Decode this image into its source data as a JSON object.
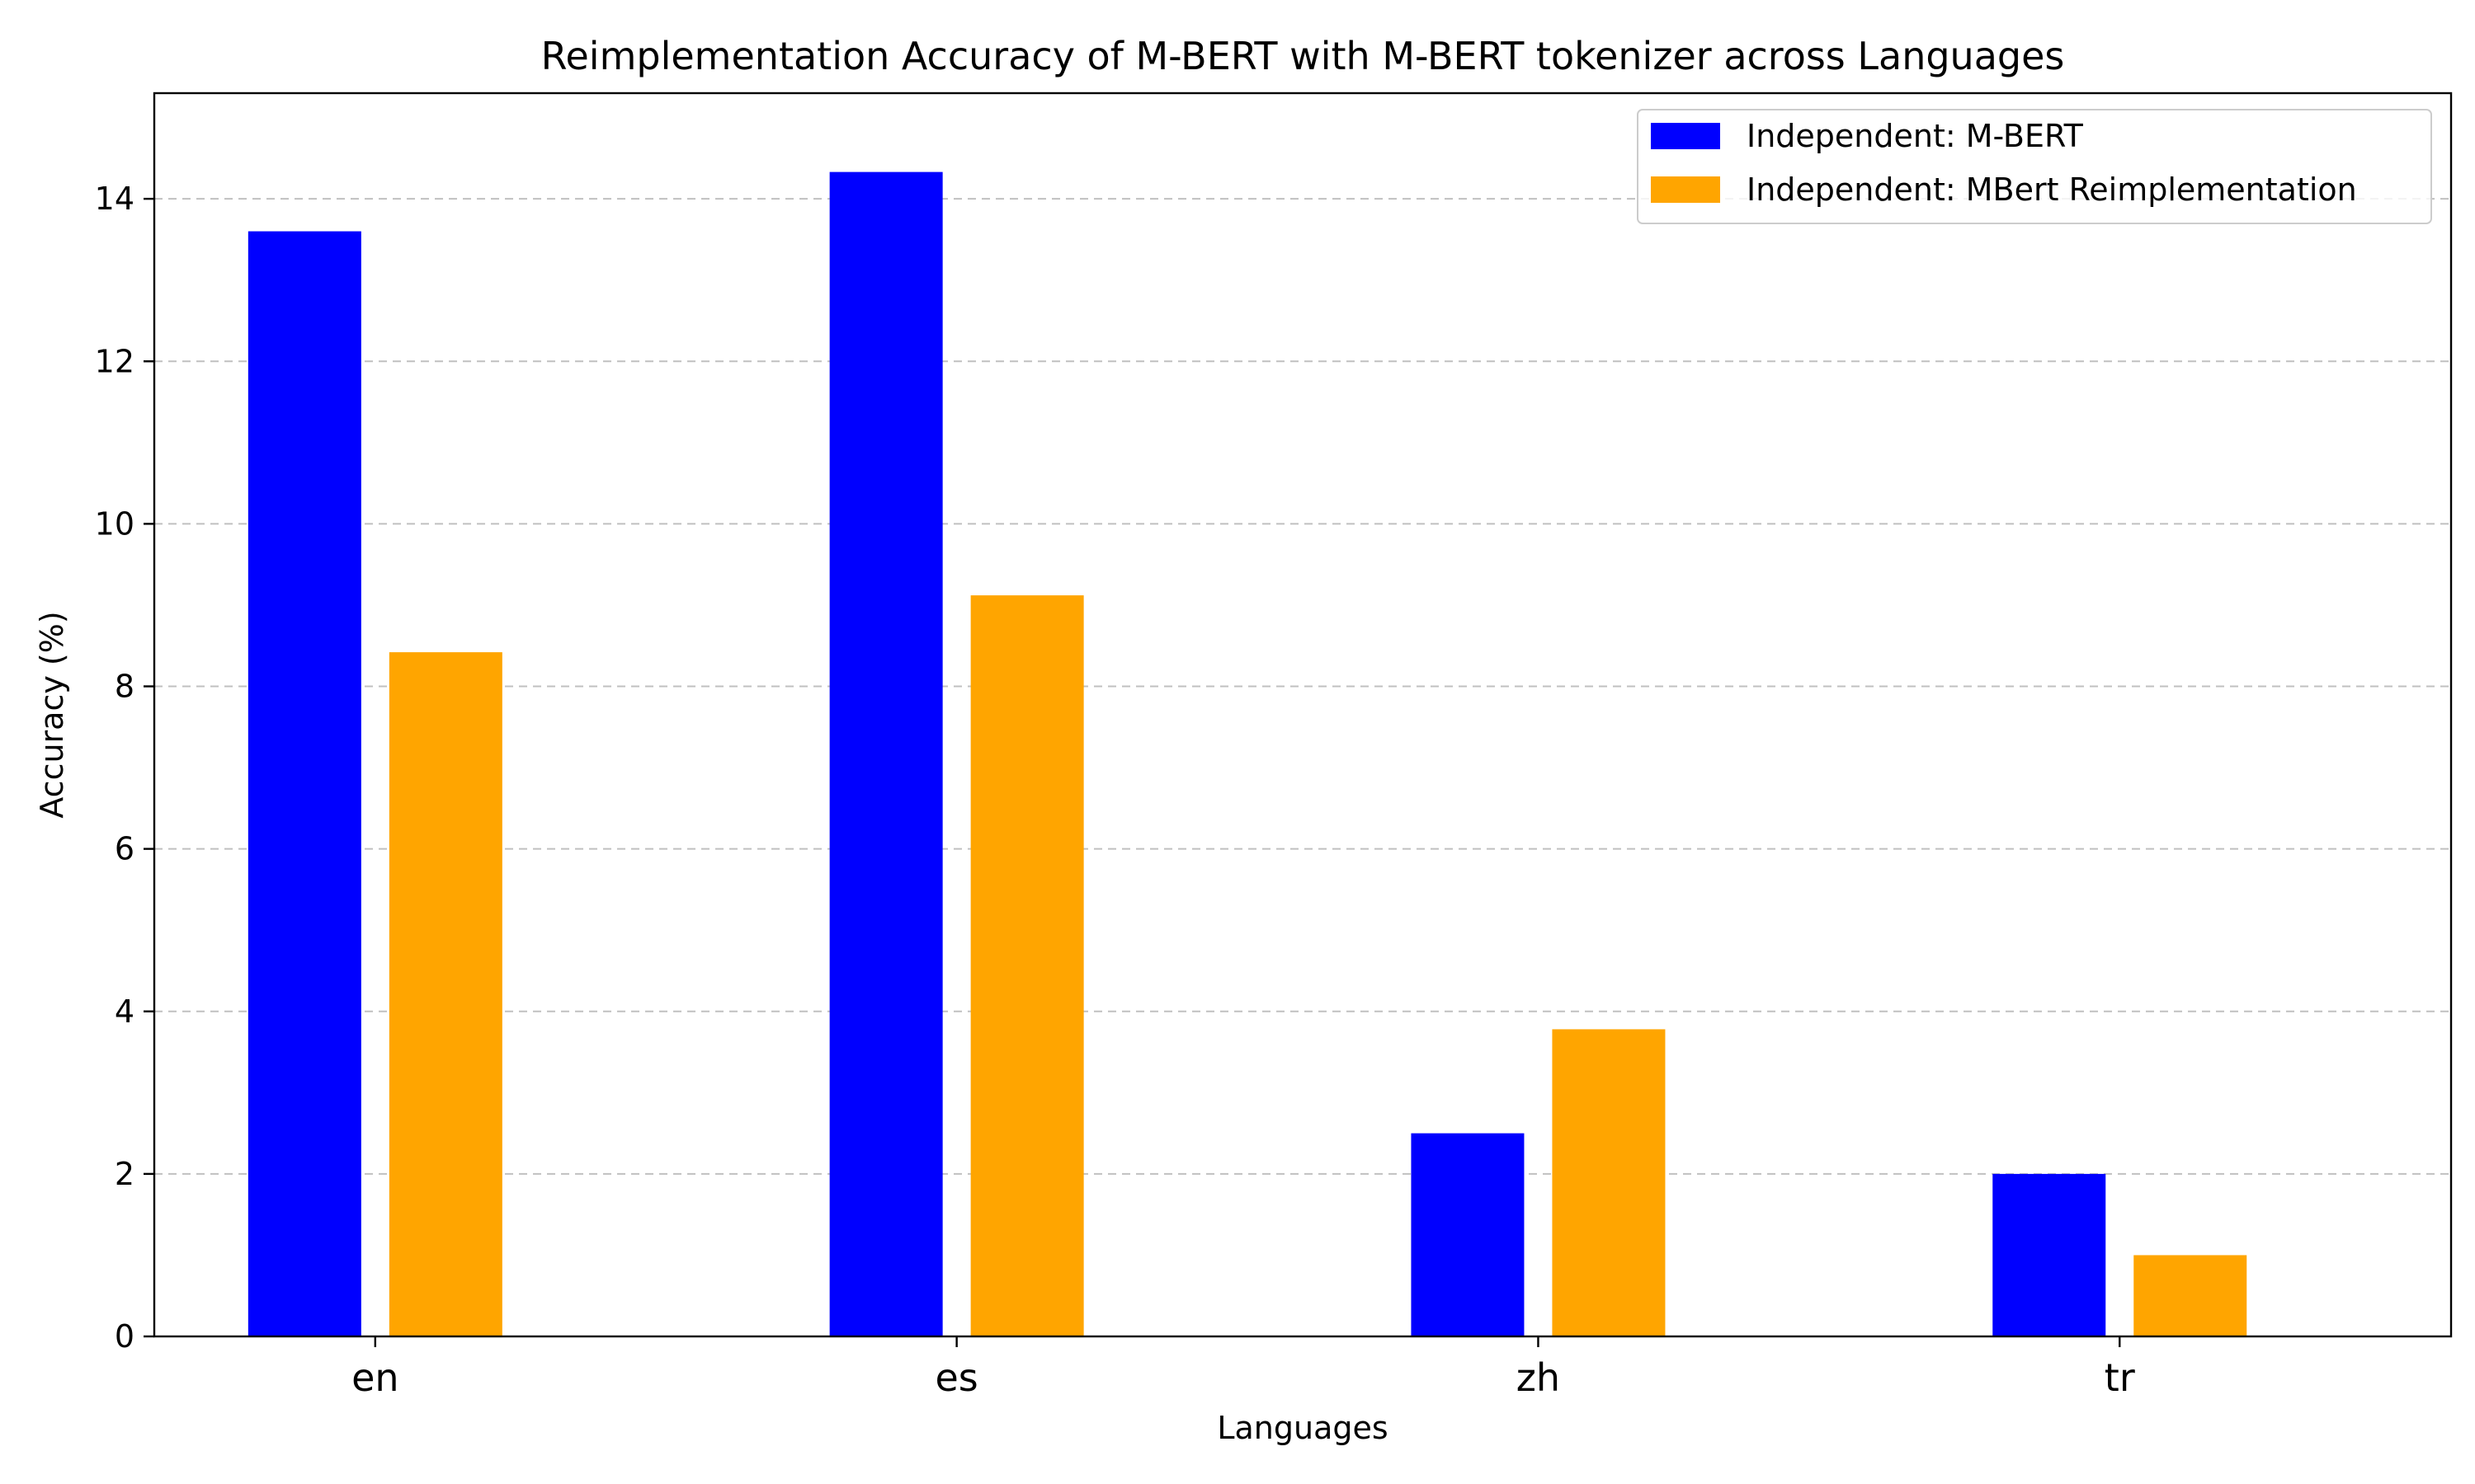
{
  "chart_data": {
    "type": "bar",
    "title": "Reimplementation Accuracy of M-BERT with M-BERT tokenizer across Languages",
    "xlabel": "Languages",
    "ylabel": "Accuracy (%)",
    "categories": [
      "en",
      "es",
      "zh",
      "tr"
    ],
    "series": [
      {
        "name": "Independent: M-BERT",
        "color": "#0000ff",
        "values": [
          13.6,
          14.33,
          2.5,
          2.0
        ]
      },
      {
        "name": "Independent: MBert Reimplementation",
        "color": "#ffa500",
        "values": [
          8.42,
          9.12,
          3.78,
          1.0
        ]
      }
    ],
    "ylim": [
      0,
      15.3
    ],
    "yticks": [
      0,
      2,
      4,
      6,
      8,
      10,
      12,
      14
    ],
    "grid": "y dashed",
    "legend_position": "top-right"
  }
}
